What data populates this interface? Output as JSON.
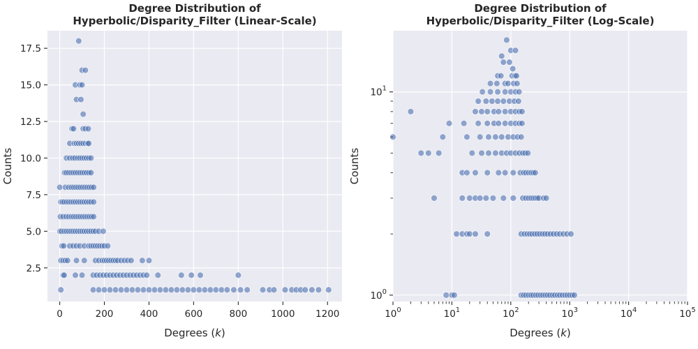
{
  "chart_data": [
    {
      "type": "scatter",
      "title": "Degree Distribution of\nHyperbolic/Disparity_Filter (Linear-Scale)",
      "xlabel": "Degrees (k)",
      "ylabel": "Counts",
      "xscale": "linear",
      "yscale": "linear",
      "xlim": [
        -55,
        1265
      ],
      "ylim": [
        0.2,
        18.7
      ],
      "xticks": [
        0,
        200,
        400,
        600,
        800,
        1000,
        1200
      ],
      "xtick_labels": [
        "0",
        "200",
        "400",
        "600",
        "800",
        "1000",
        "1200"
      ],
      "yticks": [
        2.5,
        5.0,
        7.5,
        10.0,
        12.5,
        15.0,
        17.5
      ],
      "ytick_labels": [
        "2.5",
        "5.0",
        "7.5",
        "10.0",
        "12.5",
        "15.0",
        "17.5"
      ],
      "grid": true,
      "points": [
        [
          85,
          18
        ],
        [
          100,
          16
        ],
        [
          115,
          16
        ],
        [
          70,
          15
        ],
        [
          90,
          15
        ],
        [
          100,
          15
        ],
        [
          75,
          14
        ],
        [
          95,
          14
        ],
        [
          105,
          13
        ],
        [
          55,
          12
        ],
        [
          62,
          12
        ],
        [
          105,
          12
        ],
        [
          115,
          12
        ],
        [
          128,
          12
        ],
        [
          45,
          11
        ],
        [
          65,
          11
        ],
        [
          75,
          11
        ],
        [
          85,
          11
        ],
        [
          95,
          11
        ],
        [
          105,
          11
        ],
        [
          115,
          11
        ],
        [
          125,
          11
        ],
        [
          130,
          11
        ],
        [
          30,
          10
        ],
        [
          45,
          10
        ],
        [
          58,
          10
        ],
        [
          68,
          10
        ],
        [
          80,
          10
        ],
        [
          90,
          10
        ],
        [
          100,
          10
        ],
        [
          110,
          10
        ],
        [
          120,
          10
        ],
        [
          130,
          10
        ],
        [
          140,
          10
        ],
        [
          22,
          9
        ],
        [
          30,
          9
        ],
        [
          40,
          9
        ],
        [
          50,
          9
        ],
        [
          60,
          9
        ],
        [
          70,
          9
        ],
        [
          80,
          9
        ],
        [
          90,
          9
        ],
        [
          100,
          9
        ],
        [
          110,
          9
        ],
        [
          120,
          9
        ],
        [
          130,
          9
        ],
        [
          140,
          9
        ],
        [
          0,
          8
        ],
        [
          25,
          8
        ],
        [
          40,
          8
        ],
        [
          52,
          8
        ],
        [
          62,
          8
        ],
        [
          72,
          8
        ],
        [
          82,
          8
        ],
        [
          92,
          8
        ],
        [
          102,
          8
        ],
        [
          112,
          8
        ],
        [
          122,
          8
        ],
        [
          132,
          8
        ],
        [
          142,
          8
        ],
        [
          152,
          8
        ],
        [
          5,
          7
        ],
        [
          12,
          7
        ],
        [
          20,
          7
        ],
        [
          30,
          7
        ],
        [
          40,
          7
        ],
        [
          50,
          7
        ],
        [
          60,
          7
        ],
        [
          70,
          7
        ],
        [
          80,
          7
        ],
        [
          90,
          7
        ],
        [
          100,
          7
        ],
        [
          110,
          7
        ],
        [
          120,
          7
        ],
        [
          130,
          7
        ],
        [
          140,
          7
        ],
        [
          152,
          7
        ],
        [
          3,
          6
        ],
        [
          15,
          6
        ],
        [
          28,
          6
        ],
        [
          40,
          6
        ],
        [
          52,
          6
        ],
        [
          62,
          6
        ],
        [
          72,
          6
        ],
        [
          82,
          6
        ],
        [
          92,
          6
        ],
        [
          102,
          6
        ],
        [
          112,
          6
        ],
        [
          122,
          6
        ],
        [
          132,
          6
        ],
        [
          142,
          6
        ],
        [
          152,
          6
        ],
        [
          1,
          5
        ],
        [
          8,
          5
        ],
        [
          20,
          5
        ],
        [
          30,
          5
        ],
        [
          40,
          5
        ],
        [
          50,
          5
        ],
        [
          60,
          5
        ],
        [
          70,
          5
        ],
        [
          80,
          5
        ],
        [
          90,
          5
        ],
        [
          100,
          5
        ],
        [
          110,
          5
        ],
        [
          120,
          5
        ],
        [
          130,
          5
        ],
        [
          140,
          5
        ],
        [
          150,
          5
        ],
        [
          160,
          5
        ],
        [
          175,
          5
        ],
        [
          195,
          5
        ],
        [
          10,
          4
        ],
        [
          18,
          4
        ],
        [
          45,
          4
        ],
        [
          60,
          4
        ],
        [
          75,
          4
        ],
        [
          90,
          4
        ],
        [
          110,
          4
        ],
        [
          130,
          4
        ],
        [
          140,
          4
        ],
        [
          150,
          4
        ],
        [
          160,
          4
        ],
        [
          170,
          4
        ],
        [
          180,
          4
        ],
        [
          190,
          4
        ],
        [
          200,
          4
        ],
        [
          215,
          4
        ],
        [
          5,
          3
        ],
        [
          15,
          3
        ],
        [
          25,
          3
        ],
        [
          35,
          3
        ],
        [
          75,
          3
        ],
        [
          110,
          3
        ],
        [
          160,
          3
        ],
        [
          175,
          3
        ],
        [
          190,
          3
        ],
        [
          200,
          3
        ],
        [
          210,
          3
        ],
        [
          220,
          3
        ],
        [
          230,
          3
        ],
        [
          240,
          3
        ],
        [
          250,
          3
        ],
        [
          260,
          3
        ],
        [
          275,
          3
        ],
        [
          290,
          3
        ],
        [
          305,
          3
        ],
        [
          320,
          3
        ],
        [
          370,
          3
        ],
        [
          400,
          3
        ],
        [
          15,
          2
        ],
        [
          20,
          2
        ],
        [
          70,
          2
        ],
        [
          100,
          2
        ],
        [
          150,
          2
        ],
        [
          165,
          2
        ],
        [
          180,
          2
        ],
        [
          195,
          2
        ],
        [
          210,
          2
        ],
        [
          225,
          2
        ],
        [
          240,
          2
        ],
        [
          255,
          2
        ],
        [
          270,
          2
        ],
        [
          285,
          2
        ],
        [
          300,
          2
        ],
        [
          315,
          2
        ],
        [
          330,
          2
        ],
        [
          345,
          2
        ],
        [
          360,
          2
        ],
        [
          375,
          2
        ],
        [
          390,
          2
        ],
        [
          440,
          2
        ],
        [
          545,
          2
        ],
        [
          590,
          2
        ],
        [
          630,
          2
        ],
        [
          800,
          2
        ],
        [
          5,
          1
        ],
        [
          150,
          1
        ],
        [
          175,
          1
        ],
        [
          200,
          1
        ],
        [
          225,
          1
        ],
        [
          250,
          1
        ],
        [
          275,
          1
        ],
        [
          300,
          1
        ],
        [
          325,
          1
        ],
        [
          350,
          1
        ],
        [
          375,
          1
        ],
        [
          400,
          1
        ],
        [
          425,
          1
        ],
        [
          450,
          1
        ],
        [
          475,
          1
        ],
        [
          500,
          1
        ],
        [
          525,
          1
        ],
        [
          550,
          1
        ],
        [
          575,
          1
        ],
        [
          600,
          1
        ],
        [
          625,
          1
        ],
        [
          650,
          1
        ],
        [
          675,
          1
        ],
        [
          700,
          1
        ],
        [
          725,
          1
        ],
        [
          750,
          1
        ],
        [
          780,
          1
        ],
        [
          810,
          1
        ],
        [
          840,
          1
        ],
        [
          910,
          1
        ],
        [
          940,
          1
        ],
        [
          960,
          1
        ],
        [
          1010,
          1
        ],
        [
          1040,
          1
        ],
        [
          1060,
          1
        ],
        [
          1080,
          1
        ],
        [
          1100,
          1
        ],
        [
          1130,
          1
        ],
        [
          1160,
          1
        ],
        [
          1205,
          1
        ]
      ]
    },
    {
      "type": "scatter",
      "title": "Degree Distribution of\nHyperbolic/Disparity_Filter (Log-Scale)",
      "xlabel": "Degrees (k)",
      "ylabel": "Counts",
      "xscale": "log",
      "yscale": "log",
      "xlim": [
        1,
        100000
      ],
      "ylim": [
        0.93,
        20
      ],
      "xticks": [
        1,
        10,
        100,
        1000,
        10000,
        100000
      ],
      "xtick_labels": [
        "10^0",
        "10^1",
        "10^2",
        "10^3",
        "10^4",
        "10^5"
      ],
      "yticks": [
        1,
        10
      ],
      "ytick_labels": [
        "10^0",
        "10^1"
      ],
      "grid": true,
      "points": [
        [
          85,
          18
        ],
        [
          70,
          15
        ],
        [
          100,
          16
        ],
        [
          120,
          16
        ],
        [
          75,
          14
        ],
        [
          95,
          14
        ],
        [
          108,
          13
        ],
        [
          60,
          12
        ],
        [
          68,
          12
        ],
        [
          105,
          12
        ],
        [
          118,
          12
        ],
        [
          125,
          12
        ],
        [
          45,
          11
        ],
        [
          58,
          11
        ],
        [
          80,
          11
        ],
        [
          90,
          11
        ],
        [
          112,
          11
        ],
        [
          128,
          11
        ],
        [
          33,
          10
        ],
        [
          45,
          10
        ],
        [
          60,
          10
        ],
        [
          80,
          10
        ],
        [
          100,
          10
        ],
        [
          120,
          10
        ],
        [
          138,
          10
        ],
        [
          28,
          9
        ],
        [
          38,
          9
        ],
        [
          48,
          9
        ],
        [
          60,
          9
        ],
        [
          75,
          9
        ],
        [
          95,
          9
        ],
        [
          115,
          9
        ],
        [
          135,
          9
        ],
        [
          2,
          8
        ],
        [
          25,
          8
        ],
        [
          32,
          8
        ],
        [
          40,
          8
        ],
        [
          52,
          8
        ],
        [
          62,
          8
        ],
        [
          80,
          8
        ],
        [
          100,
          8
        ],
        [
          120,
          8
        ],
        [
          140,
          8
        ],
        [
          155,
          8
        ],
        [
          9,
          7
        ],
        [
          16,
          7
        ],
        [
          28,
          7
        ],
        [
          40,
          7
        ],
        [
          52,
          7
        ],
        [
          62,
          7
        ],
        [
          80,
          7
        ],
        [
          100,
          7
        ],
        [
          120,
          7
        ],
        [
          140,
          7
        ],
        [
          155,
          7
        ],
        [
          1,
          6
        ],
        [
          7,
          6
        ],
        [
          18,
          6
        ],
        [
          30,
          6
        ],
        [
          42,
          6
        ],
        [
          55,
          6
        ],
        [
          70,
          6
        ],
        [
          90,
          6
        ],
        [
          110,
          6
        ],
        [
          130,
          6
        ],
        [
          150,
          6
        ],
        [
          3,
          5
        ],
        [
          4,
          5
        ],
        [
          6,
          5
        ],
        [
          22,
          5
        ],
        [
          32,
          5
        ],
        [
          42,
          5
        ],
        [
          55,
          5
        ],
        [
          70,
          5
        ],
        [
          85,
          5
        ],
        [
          100,
          5
        ],
        [
          120,
          5
        ],
        [
          140,
          5
        ],
        [
          160,
          5
        ],
        [
          175,
          5
        ],
        [
          195,
          5
        ],
        [
          15,
          4
        ],
        [
          18,
          4
        ],
        [
          25,
          4
        ],
        [
          40,
          4
        ],
        [
          62,
          4
        ],
        [
          80,
          4
        ],
        [
          110,
          4
        ],
        [
          145,
          4
        ],
        [
          165,
          4
        ],
        [
          180,
          4
        ],
        [
          200,
          4
        ],
        [
          220,
          4
        ],
        [
          240,
          4
        ],
        [
          260,
          4
        ],
        [
          5,
          3
        ],
        [
          15,
          3
        ],
        [
          20,
          3
        ],
        [
          25,
          3
        ],
        [
          30,
          3
        ],
        [
          38,
          3
        ],
        [
          50,
          3
        ],
        [
          75,
          3
        ],
        [
          110,
          3
        ],
        [
          160,
          3
        ],
        [
          180,
          3
        ],
        [
          200,
          3
        ],
        [
          220,
          3
        ],
        [
          240,
          3
        ],
        [
          260,
          3
        ],
        [
          280,
          3
        ],
        [
          300,
          3
        ],
        [
          360,
          3
        ],
        [
          400,
          3
        ],
        [
          12,
          2
        ],
        [
          15,
          2
        ],
        [
          18,
          2
        ],
        [
          20,
          2
        ],
        [
          25,
          2
        ],
        [
          40,
          2
        ],
        [
          150,
          2
        ],
        [
          170,
          2
        ],
        [
          190,
          2
        ],
        [
          210,
          2
        ],
        [
          230,
          2
        ],
        [
          255,
          2
        ],
        [
          280,
          2
        ],
        [
          310,
          2
        ],
        [
          345,
          2
        ],
        [
          380,
          2
        ],
        [
          420,
          2
        ],
        [
          470,
          2
        ],
        [
          530,
          2
        ],
        [
          600,
          2
        ],
        [
          680,
          2
        ],
        [
          780,
          2
        ],
        [
          900,
          2
        ],
        [
          1050,
          2
        ],
        [
          8,
          1
        ],
        [
          10,
          1
        ],
        [
          11,
          1
        ],
        [
          150,
          1
        ],
        [
          165,
          1
        ],
        [
          180,
          1
        ],
        [
          200,
          1
        ],
        [
          220,
          1
        ],
        [
          240,
          1
        ],
        [
          265,
          1
        ],
        [
          290,
          1
        ],
        [
          320,
          1
        ],
        [
          350,
          1
        ],
        [
          385,
          1
        ],
        [
          420,
          1
        ],
        [
          460,
          1
        ],
        [
          510,
          1
        ],
        [
          560,
          1
        ],
        [
          620,
          1
        ],
        [
          680,
          1
        ],
        [
          750,
          1
        ],
        [
          830,
          1
        ],
        [
          910,
          1
        ],
        [
          1000,
          1
        ],
        [
          1100,
          1
        ],
        [
          1200,
          1
        ]
      ]
    }
  ]
}
